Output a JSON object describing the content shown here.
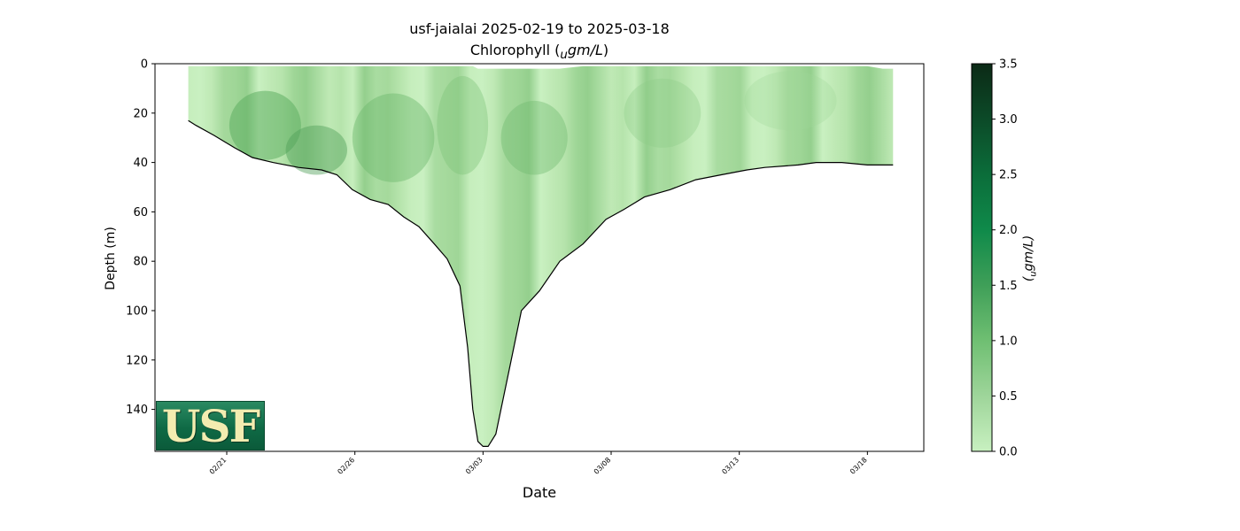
{
  "chart_data": {
    "type": "heatmap",
    "title": "usf-jaialai 2025-02-19 to 2025-03-18",
    "subtitle_prefix": "Chlorophyll (",
    "subtitle_unit_sub": "u",
    "subtitle_unit": "gm/L",
    "subtitle_suffix": ")",
    "xlabel": "Date",
    "ylabel": "Depth (m)",
    "colorbar_label_sub": "u",
    "colorbar_label": "gm/L",
    "x_tick_labels": [
      "02/21",
      "02/26",
      "03/03",
      "03/08",
      "03/13",
      "03/18"
    ],
    "x_ticks_days_from_feb19": [
      2,
      7,
      12,
      17,
      22,
      27
    ],
    "x_range_days_from_feb19": [
      -0.8,
      29.2
    ],
    "y_ticks": [
      0,
      20,
      40,
      60,
      80,
      100,
      120,
      140
    ],
    "ylim": [
      157,
      0
    ],
    "colorbar_ticks": [
      "0.0",
      "0.5",
      "1.0",
      "1.5",
      "2.0",
      "2.5",
      "3.0",
      "3.5"
    ],
    "colorbar_range": [
      0,
      3.5
    ],
    "colormap": [
      "#c8f0c0",
      "#9ed59a",
      "#6fbf72",
      "#3f9f58",
      "#0f8a4a",
      "#0b6d3a",
      "#0c4a28",
      "#0c2a16"
    ],
    "profile_bottom_depth": {
      "days_from_feb19": [
        0.5,
        0.8,
        1.5,
        2.3,
        3.0,
        3.8,
        4.8,
        5.7,
        6.3,
        6.9,
        7.6,
        8.3,
        8.9,
        9.5,
        10.1,
        10.6,
        11.1,
        11.4,
        11.6,
        11.8,
        12.0,
        12.2,
        12.5,
        13.0,
        13.5,
        14.2,
        15.0,
        15.9,
        16.8,
        17.5,
        18.3,
        19.3,
        20.3,
        21.3,
        22.3,
        23.0,
        24.3,
        25.0,
        26.0,
        27.0,
        27.6,
        28.0
      ],
      "depth_m": [
        23,
        25,
        29,
        34,
        38,
        40,
        42,
        43,
        45,
        51,
        55,
        57,
        62,
        66,
        73,
        79,
        90,
        115,
        140,
        153,
        155,
        155,
        150,
        125,
        100,
        92,
        80,
        73,
        63,
        59,
        54,
        51,
        47,
        45,
        43,
        42,
        41,
        40,
        40,
        41,
        41,
        41
      ]
    },
    "profile_top_depth": [
      1,
      1,
      1,
      1,
      1,
      1,
      1,
      1,
      1,
      1,
      1,
      1,
      1,
      1,
      1,
      1,
      1,
      1,
      1,
      2,
      2,
      2,
      2,
      2,
      2,
      2,
      2,
      1,
      1,
      1,
      1,
      1,
      1,
      1,
      1,
      1,
      1,
      1,
      1,
      1,
      2,
      2
    ],
    "chlorophyll_sample": {
      "depth_m": [
        0,
        20,
        40,
        60,
        80,
        100,
        120,
        140
      ],
      "values_by_day_0": [
        0.45,
        0.5,
        0.55,
        0.0,
        0.0,
        0.0,
        0.0,
        0.0
      ],
      "values_by_day_4": [
        0.7,
        0.9,
        1.1,
        0.0,
        0.0,
        0.0,
        0.0,
        0.0
      ],
      "values_by_day_12": [
        0.3,
        0.35,
        0.3,
        0.2,
        0.15,
        0.15,
        0.1,
        0.1
      ],
      "values_by_day_18": [
        0.6,
        0.55,
        0.5,
        0.0,
        0.0,
        0.0,
        0.0,
        0.0
      ],
      "values_by_day_25": [
        0.35,
        0.3,
        0.3,
        0.0,
        0.0,
        0.0,
        0.0,
        0.0
      ]
    }
  },
  "logo": {
    "text": "USF"
  }
}
